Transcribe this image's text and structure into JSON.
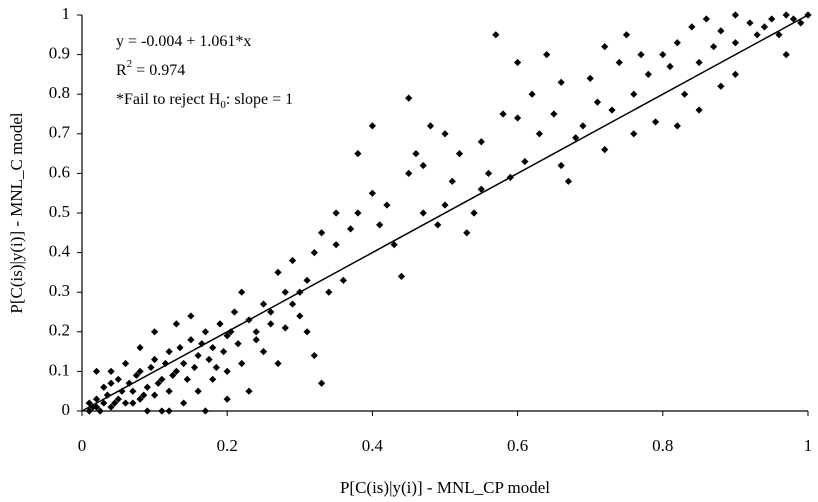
{
  "chart_data": {
    "type": "scatter",
    "x_label": "P[C(is)|y(i)] - MNL_CP model",
    "y_label": "P[C(is)|y(i)] - MNL_C model",
    "annotations": [
      [
        "y = -0.004 + 1.061*x"
      ],
      [
        "R",
        {
          "sup": "2"
        },
        " = 0.974"
      ],
      [
        "*Fail to reject H",
        {
          "sub": "0"
        },
        ": slope = 1"
      ]
    ],
    "color": "#000000",
    "xlim": [
      0,
      1
    ],
    "ylim": [
      0,
      1
    ],
    "xticks": [
      0,
      0.2,
      0.4,
      0.6,
      0.8,
      1
    ],
    "yticks": [
      0,
      0.1,
      0.2,
      0.3,
      0.4,
      0.5,
      0.6,
      0.7,
      0.8,
      0.9,
      1
    ],
    "grid": false,
    "trendline": {
      "x": [
        0,
        1
      ],
      "y": [
        0,
        1
      ]
    },
    "x": [
      0.01,
      0.02,
      0.03,
      0.04,
      0.05,
      0.02,
      0.06,
      0.07,
      0.08,
      0.09,
      0.1,
      0.11,
      0.12,
      0.05,
      0.03,
      0.04,
      0.06,
      0.08,
      0.1,
      0.12,
      0.13,
      0.14,
      0.15,
      0.16,
      0.17,
      0.18,
      0.19,
      0.2,
      0.21,
      0.22,
      0.15,
      0.13,
      0.1,
      0.08,
      0.16,
      0.18,
      0.14,
      0.12,
      0.17,
      0.2,
      0.22,
      0.24,
      0.25,
      0.26,
      0.28,
      0.27,
      0.3,
      0.32,
      0.33,
      0.3,
      0.29,
      0.32,
      0.34,
      0.35,
      0.36,
      0.38,
      0.37,
      0.4,
      0.41,
      0.42,
      0.44,
      0.45,
      0.46,
      0.47,
      0.48,
      0.5,
      0.5,
      0.52,
      0.53,
      0.54,
      0.55,
      0.56,
      0.58,
      0.6,
      0.62,
      0.61,
      0.63,
      0.65,
      0.66,
      0.67,
      0.68,
      0.7,
      0.71,
      0.72,
      0.74,
      0.75,
      0.76,
      0.78,
      0.8,
      0.79,
      0.82,
      0.84,
      0.85,
      0.86,
      0.88,
      0.9,
      0.92,
      0.93,
      0.95,
      0.97,
      0.98,
      1.0,
      0.99,
      0.9,
      0.88,
      0.85,
      0.82,
      0.76,
      0.72,
      0.66,
      0.64,
      0.6,
      0.57,
      0.45,
      0.4,
      0.38,
      0.35,
      0.33,
      0.31,
      0.27,
      0.25,
      0.23,
      0.2,
      0.09,
      0.07,
      0.01,
      0.015,
      0.025,
      0.035,
      0.045,
      0.055,
      0.065,
      0.075,
      0.085,
      0.095,
      0.105,
      0.115,
      0.125,
      0.135,
      0.145,
      0.155,
      0.165,
      0.175,
      0.185,
      0.195,
      0.205,
      0.215,
      0.23,
      0.24,
      0.26,
      0.28,
      0.29,
      0.31,
      0.02,
      0.04,
      0.11,
      0.9,
      0.94,
      0.96,
      0.97,
      0.87,
      0.83,
      0.81,
      0.77,
      0.73,
      0.69,
      0.59,
      0.55,
      0.51,
      0.49,
      0.47,
      0.43
    ],
    "values": [
      0.0,
      0.01,
      0.02,
      0.01,
      0.03,
      0.03,
      0.02,
      0.05,
      0.03,
      0.06,
      0.04,
      0.08,
      0.05,
      0.08,
      0.06,
      0.1,
      0.12,
      0.1,
      0.13,
      0.15,
      0.1,
      0.12,
      0.18,
      0.14,
      0.2,
      0.16,
      0.22,
      0.19,
      0.25,
      0.3,
      0.24,
      0.22,
      0.2,
      0.16,
      0.05,
      0.08,
      0.02,
      0.0,
      0.0,
      0.1,
      0.12,
      0.2,
      0.27,
      0.22,
      0.3,
      0.35,
      0.24,
      0.14,
      0.07,
      0.3,
      0.38,
      0.4,
      0.3,
      0.42,
      0.33,
      0.5,
      0.46,
      0.55,
      0.47,
      0.52,
      0.34,
      0.6,
      0.65,
      0.62,
      0.72,
      0.7,
      0.52,
      0.65,
      0.45,
      0.5,
      0.68,
      0.6,
      0.75,
      0.74,
      0.8,
      0.63,
      0.7,
      0.75,
      0.62,
      0.58,
      0.69,
      0.84,
      0.78,
      0.92,
      0.88,
      0.95,
      0.8,
      0.85,
      0.9,
      0.73,
      0.93,
      0.97,
      0.88,
      0.99,
      0.96,
      1.0,
      0.98,
      0.95,
      0.99,
      1.0,
      0.99,
      1.0,
      0.98,
      0.85,
      0.82,
      0.76,
      0.72,
      0.7,
      0.66,
      0.83,
      0.9,
      0.88,
      0.95,
      0.79,
      0.72,
      0.65,
      0.5,
      0.45,
      0.2,
      0.12,
      0.15,
      0.05,
      0.03,
      0.0,
      0.02,
      0.02,
      0.01,
      0.0,
      0.04,
      0.02,
      0.05,
      0.07,
      0.09,
      0.04,
      0.11,
      0.07,
      0.12,
      0.09,
      0.16,
      0.08,
      0.11,
      0.17,
      0.13,
      0.11,
      0.15,
      0.2,
      0.17,
      0.23,
      0.18,
      0.25,
      0.21,
      0.27,
      0.33,
      0.1,
      0.07,
      0.0,
      0.93,
      0.97,
      0.95,
      0.9,
      0.92,
      0.8,
      0.87,
      0.9,
      0.76,
      0.72,
      0.59,
      0.56,
      0.58,
      0.47,
      0.5,
      0.42
    ]
  }
}
